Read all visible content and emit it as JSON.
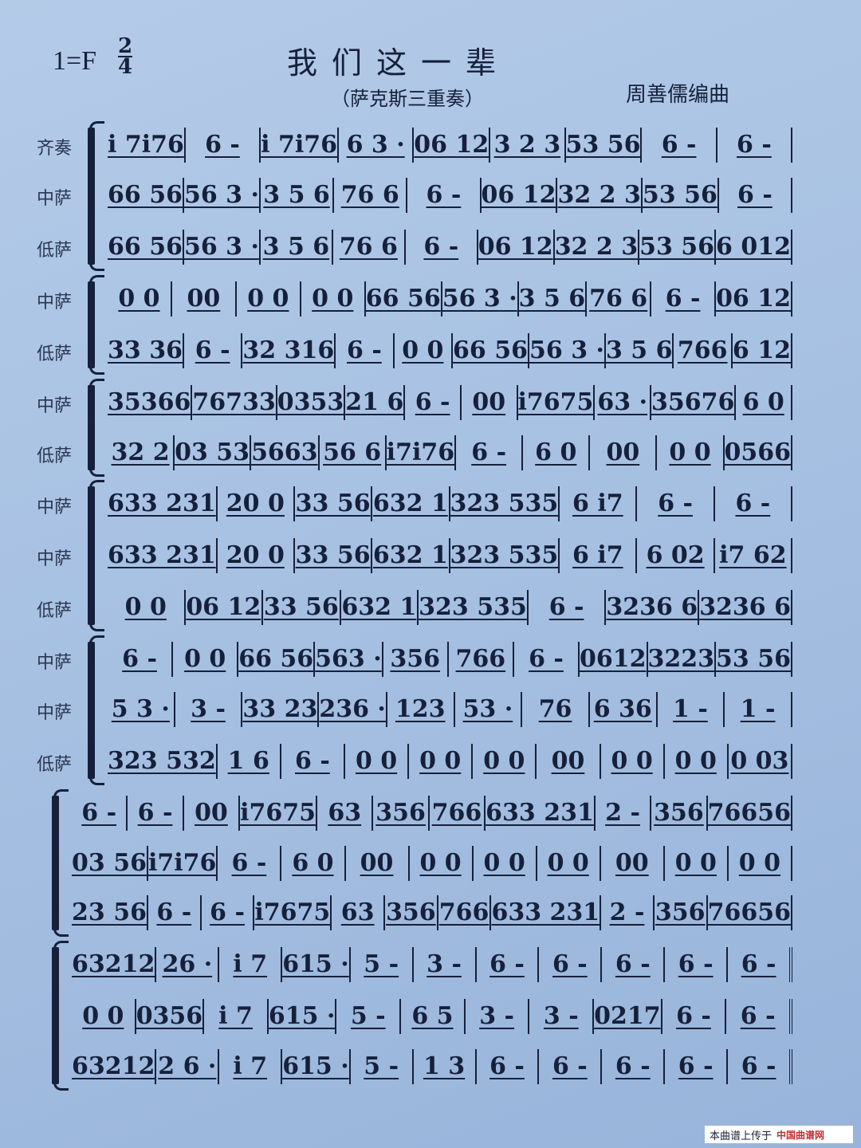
{
  "header": {
    "key": "1=F",
    "time_signature": {
      "top": "2",
      "bottom": "4"
    },
    "title": "我们这一辈",
    "subtitle": "（萨克斯三重奏）",
    "composer": "周善儒编曲"
  },
  "systems": [
    {
      "staves": [
        {
          "label": "齐奏",
          "measures": [
            "i 7i76",
            "6 -",
            "i 7i76",
            "6 3 ·",
            "06 12",
            "3 2 3",
            "53 56",
            "6 -",
            "6   -"
          ]
        },
        {
          "label": "中萨",
          "measures": [
            "66 56",
            "56 3 ·",
            "3 5 6",
            "76 6",
            "6 -",
            "06 12",
            "32 2 3",
            "53 56",
            "6   -"
          ]
        },
        {
          "label": "低萨",
          "measures": [
            "66 56",
            "56 3 ·",
            "3 5 6",
            "76 6",
            "6 -",
            "06 12",
            "32 2 3",
            "53 56",
            "6 012"
          ]
        }
      ]
    },
    {
      "staves": [
        {
          "label": "中萨",
          "measures": [
            "0 0",
            "00",
            "0 0",
            "0 0",
            "66 56",
            "56 3 ·",
            "3 5 6",
            "76 6",
            "6 -",
            "06 12"
          ]
        },
        {
          "label": "低萨",
          "measures": [
            "33 36",
            "6 -",
            "32 316",
            "6 -",
            "0 0",
            "66 56",
            "56 3 ·",
            "3 5 6",
            "766",
            "6 12"
          ]
        }
      ]
    },
    {
      "staves": [
        {
          "label": "中萨",
          "measures": [
            "35366",
            "76733",
            "0353",
            "21 6",
            "6 -",
            "00",
            "i7675",
            "63 ·",
            "35676",
            "6 0"
          ]
        },
        {
          "label": "低萨",
          "measures": [
            "32 2",
            "03 53",
            "5663",
            "56 6",
            "i7i76",
            "6 -",
            "6 0",
            "00",
            "0 0",
            "0566"
          ]
        }
      ]
    },
    {
      "staves": [
        {
          "label": "中萨",
          "measures": [
            "633 231",
            "20 0",
            "33 56",
            "632 1",
            "323 535",
            "6 i7",
            "6 -",
            "6 -"
          ]
        },
        {
          "label": "中萨",
          "measures": [
            "633 231",
            "20 0",
            "33 56",
            "632 1",
            "323 535",
            "6 i7",
            "6 02",
            "i7 62"
          ]
        },
        {
          "label": "低萨",
          "measures": [
            "0 0",
            "06 12",
            "33 56",
            "632 1",
            "323 535",
            "6 -",
            "3236 6",
            "3236 6"
          ]
        }
      ]
    },
    {
      "staves": [
        {
          "label": "中萨",
          "measures": [
            "6 -",
            "0 0",
            "66 56",
            "563 ·",
            "356",
            "766",
            "6 -",
            "0612",
            "3223",
            "53 56"
          ]
        },
        {
          "label": "中萨",
          "measures": [
            "5 3 ·",
            "3 -",
            "33 23",
            "236 ·",
            "123",
            "53 ·",
            "76",
            "6 36",
            "1 -",
            "1 -"
          ]
        },
        {
          "label": "低萨",
          "measures": [
            "323 532",
            "1 6",
            "6 -",
            "0 0",
            "0 0",
            "0 0",
            "00",
            "0 0",
            "0 0",
            "0 03"
          ]
        }
      ]
    },
    {
      "staves": [
        {
          "label": "",
          "measures": [
            "6 -",
            "6 -",
            "00",
            "i7675",
            "63",
            "356",
            "766",
            "633 231",
            "2 -",
            "356",
            "76656"
          ]
        },
        {
          "label": "",
          "measures": [
            "03 56",
            "i7i76",
            "6 -",
            "6 0",
            "00",
            "0 0",
            "0 0",
            "0 0",
            "00",
            "0 0",
            "0 0"
          ]
        },
        {
          "label": "",
          "measures": [
            "23 56",
            "6 -",
            "6 -",
            "i7675",
            "63",
            "356",
            "766",
            "633 231",
            "2 -",
            "356",
            "76656"
          ]
        }
      ]
    },
    {
      "staves": [
        {
          "label": "",
          "measures": [
            "63212",
            "26 ·",
            "i 7",
            "615 ·",
            "5 -",
            "3 -",
            "6 -",
            "6 -",
            "6 -",
            "6 -",
            "6 -"
          ]
        },
        {
          "label": "",
          "measures": [
            "0 0",
            "0356",
            "i 7",
            "615 ·",
            "5 -",
            "6 5",
            "3 -",
            "3 -",
            "0217",
            "6 -",
            "6 -"
          ]
        },
        {
          "label": "",
          "measures": [
            "63212",
            "2 6 ·",
            "i 7",
            "615 ·",
            "5 -",
            "1 3",
            "6 -",
            "6 -",
            "6 -",
            "6 -",
            "6 -"
          ]
        }
      ]
    }
  ],
  "watermark": {
    "text": "本曲谱上传于",
    "site": "中国曲谱网"
  }
}
